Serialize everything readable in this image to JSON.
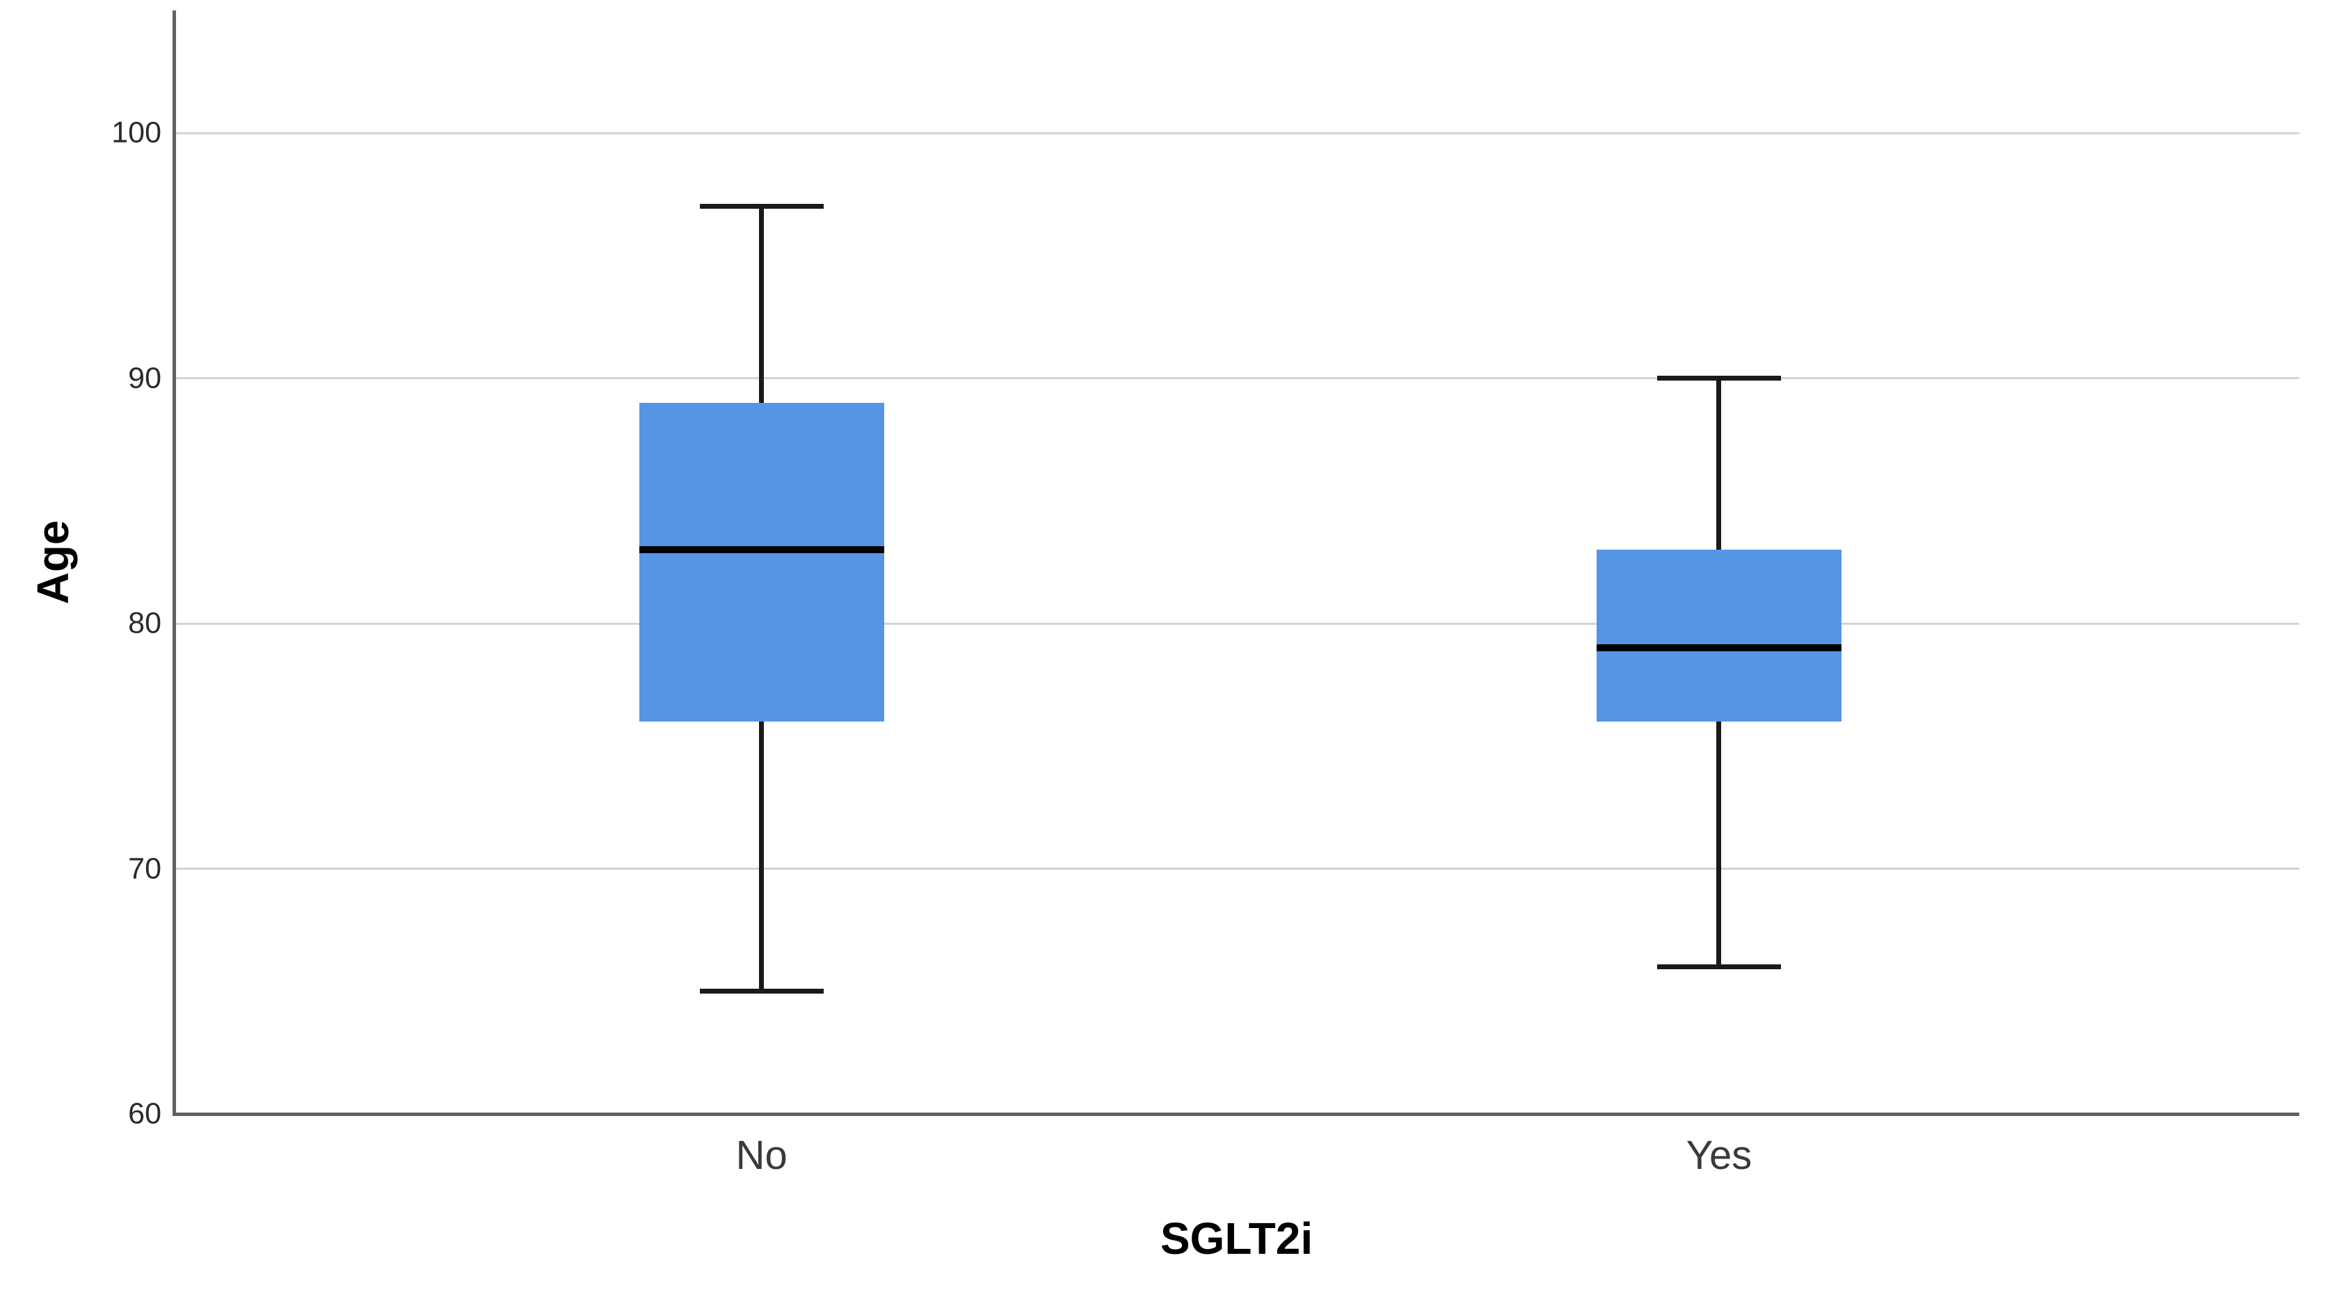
{
  "chart_data": {
    "type": "boxplot",
    "title": "",
    "xlabel": "SGLT2i",
    "ylabel": "Age",
    "categories": [
      "No",
      "Yes"
    ],
    "y_ticks": [
      60,
      70,
      80,
      90,
      100
    ],
    "ylim": [
      60,
      105
    ],
    "grid": "horizontal-only",
    "legend": "none",
    "series": [
      {
        "category": "No",
        "whisker_low": 65,
        "q1": 76,
        "median": 83,
        "q3": 89,
        "whisker_high": 97
      },
      {
        "category": "Yes",
        "whisker_low": 66,
        "q1": 76,
        "median": 79,
        "q3": 83,
        "whisker_high": 90
      }
    ],
    "colors": {
      "box_fill": "#5595E3",
      "median": "#000000",
      "whisker": "#1a1a1a",
      "axis_line": "#616161",
      "gridline": "#d4d4d4",
      "tick_label": "#2b2b2b",
      "category_label": "#3a3a3a",
      "axis_title": "#000000",
      "background": "#ffffff"
    }
  }
}
